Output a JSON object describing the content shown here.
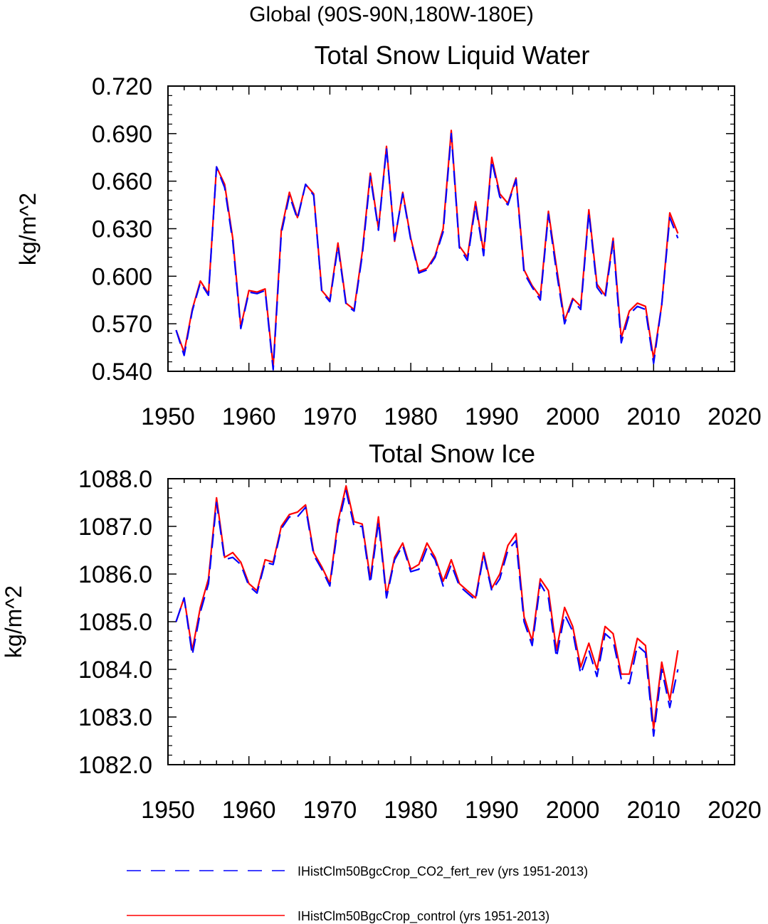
{
  "suptitle": "Global (90S-90N,180W-180E)",
  "colors": {
    "rev": "#0000ff",
    "control": "#ff0000"
  },
  "legend": [
    {
      "name": "IHistClm50BgcCrop_CO2_fert_rev (yrs 1951-2013)",
      "color": "#0000ff",
      "dash": true
    },
    {
      "name": "IHistClm50BgcCrop_control (yrs 1951-2013)",
      "color": "#ff0000",
      "dash": false
    }
  ],
  "chart_data": [
    {
      "type": "line",
      "title": "Total Snow Liquid Water",
      "ylabel": "kg/m^2",
      "xlabel": "",
      "xlim": [
        1950,
        2020
      ],
      "ylim": [
        0.54,
        0.72
      ],
      "xticks": [
        "1950",
        "1960",
        "1970",
        "1980",
        "1990",
        "2000",
        "2010",
        "2020"
      ],
      "yticks": [
        "0.540",
        "0.570",
        "0.600",
        "0.630",
        "0.660",
        "0.690",
        "0.720"
      ],
      "x": [
        1951,
        1952,
        1953,
        1954,
        1955,
        1956,
        1957,
        1958,
        1959,
        1960,
        1961,
        1962,
        1963,
        1964,
        1965,
        1966,
        1967,
        1968,
        1969,
        1970,
        1971,
        1972,
        1973,
        1974,
        1975,
        1976,
        1977,
        1978,
        1979,
        1980,
        1981,
        1982,
        1983,
        1984,
        1985,
        1986,
        1987,
        1988,
        1989,
        1990,
        1991,
        1992,
        1993,
        1994,
        1995,
        1996,
        1997,
        1998,
        1999,
        2000,
        2001,
        2002,
        2003,
        2004,
        2005,
        2006,
        2007,
        2008,
        2009,
        2010,
        2011,
        2012,
        2013
      ],
      "series": [
        {
          "name": "IHistClm50BgcCrop_CO2_fert_rev (yrs 1951-2013)",
          "values": [
            0.566,
            0.55,
            0.578,
            0.596,
            0.588,
            0.669,
            0.656,
            0.622,
            0.567,
            0.59,
            0.589,
            0.591,
            0.541,
            0.627,
            0.651,
            0.636,
            0.658,
            0.651,
            0.59,
            0.584,
            0.619,
            0.582,
            0.578,
            0.613,
            0.663,
            0.629,
            0.681,
            0.623,
            0.652,
            0.623,
            0.602,
            0.604,
            0.612,
            0.628,
            0.69,
            0.618,
            0.61,
            0.645,
            0.613,
            0.673,
            0.65,
            0.645,
            0.661,
            0.602,
            0.593,
            0.585,
            0.639,
            0.603,
            0.57,
            0.585,
            0.579,
            0.64,
            0.593,
            0.586,
            0.622,
            0.558,
            0.576,
            0.581,
            0.579,
            0.545,
            0.582,
            0.637,
            0.624
          ]
        },
        {
          "name": "IHistClm50BgcCrop_control (yrs 1951-2013)",
          "values": [
            0.566,
            0.552,
            0.579,
            0.597,
            0.589,
            0.669,
            0.658,
            0.624,
            0.568,
            0.591,
            0.59,
            0.592,
            0.543,
            0.629,
            0.653,
            0.637,
            0.658,
            0.652,
            0.591,
            0.585,
            0.621,
            0.583,
            0.579,
            0.615,
            0.665,
            0.63,
            0.682,
            0.622,
            0.653,
            0.624,
            0.603,
            0.605,
            0.613,
            0.63,
            0.692,
            0.619,
            0.612,
            0.647,
            0.615,
            0.675,
            0.652,
            0.646,
            0.662,
            0.604,
            0.594,
            0.587,
            0.641,
            0.606,
            0.572,
            0.586,
            0.581,
            0.642,
            0.595,
            0.588,
            0.624,
            0.561,
            0.578,
            0.583,
            0.581,
            0.548,
            0.582,
            0.64,
            0.627
          ]
        }
      ]
    },
    {
      "type": "line",
      "title": "Total Snow Ice",
      "ylabel": "kg/m^2",
      "xlabel": "",
      "xlim": [
        1950,
        2020
      ],
      "ylim": [
        1082.0,
        1088.0
      ],
      "xticks": [
        "1950",
        "1960",
        "1970",
        "1980",
        "1990",
        "2000",
        "2010",
        "2020"
      ],
      "yticks": [
        "1082.0",
        "1083.0",
        "1084.0",
        "1085.0",
        "1086.0",
        "1087.0",
        "1088.0"
      ],
      "x": [
        1951,
        1952,
        1953,
        1954,
        1955,
        1956,
        1957,
        1958,
        1959,
        1960,
        1961,
        1962,
        1963,
        1964,
        1965,
        1966,
        1967,
        1968,
        1969,
        1970,
        1971,
        1972,
        1973,
        1974,
        1975,
        1976,
        1977,
        1978,
        1979,
        1980,
        1981,
        1982,
        1983,
        1984,
        1985,
        1986,
        1987,
        1988,
        1989,
        1990,
        1991,
        1992,
        1993,
        1994,
        1995,
        1996,
        1997,
        1998,
        1999,
        2000,
        2001,
        2002,
        2003,
        2004,
        2005,
        2006,
        2007,
        2008,
        2009,
        2010,
        2011,
        2012,
        2013
      ],
      "series": [
        {
          "name": "IHistClm50BgcCrop_CO2_fert_rev (yrs 1951-2013)",
          "values": [
            1085.0,
            1085.5,
            1084.3,
            1085.2,
            1085.8,
            1087.5,
            1086.3,
            1086.35,
            1086.2,
            1085.75,
            1085.6,
            1086.25,
            1086.2,
            1086.95,
            1087.2,
            1087.2,
            1087.4,
            1086.4,
            1086.1,
            1085.75,
            1087.0,
            1087.75,
            1087.0,
            1087.0,
            1085.8,
            1087.1,
            1085.5,
            1086.3,
            1086.6,
            1086.05,
            1086.1,
            1086.55,
            1086.3,
            1085.75,
            1086.2,
            1085.75,
            1085.6,
            1085.45,
            1086.4,
            1085.65,
            1085.9,
            1086.5,
            1086.7,
            1085.0,
            1084.5,
            1085.8,
            1085.5,
            1084.25,
            1085.15,
            1084.8,
            1083.9,
            1084.4,
            1083.85,
            1084.75,
            1084.6,
            1083.8,
            1083.7,
            1084.5,
            1084.35,
            1082.6,
            1084.0,
            1083.2,
            1084.0
          ]
        },
        {
          "name": "IHistClm50BgcCrop_control (yrs 1951-2013)",
          "values": [
            1085.0,
            1085.5,
            1084.4,
            1085.3,
            1085.9,
            1087.6,
            1086.35,
            1086.45,
            1086.25,
            1085.8,
            1085.65,
            1086.3,
            1086.25,
            1087.0,
            1087.25,
            1087.3,
            1087.45,
            1086.45,
            1086.15,
            1085.8,
            1087.1,
            1087.85,
            1087.1,
            1087.05,
            1085.9,
            1087.2,
            1085.55,
            1086.35,
            1086.65,
            1086.1,
            1086.2,
            1086.65,
            1086.35,
            1085.85,
            1086.3,
            1085.8,
            1085.65,
            1085.5,
            1086.45,
            1085.7,
            1086.0,
            1086.6,
            1086.85,
            1085.1,
            1084.6,
            1085.9,
            1085.65,
            1084.4,
            1085.3,
            1084.9,
            1084.05,
            1084.55,
            1084.0,
            1084.9,
            1084.75,
            1083.9,
            1083.9,
            1084.65,
            1084.5,
            1082.75,
            1084.15,
            1083.35,
            1084.4
          ]
        }
      ]
    }
  ]
}
